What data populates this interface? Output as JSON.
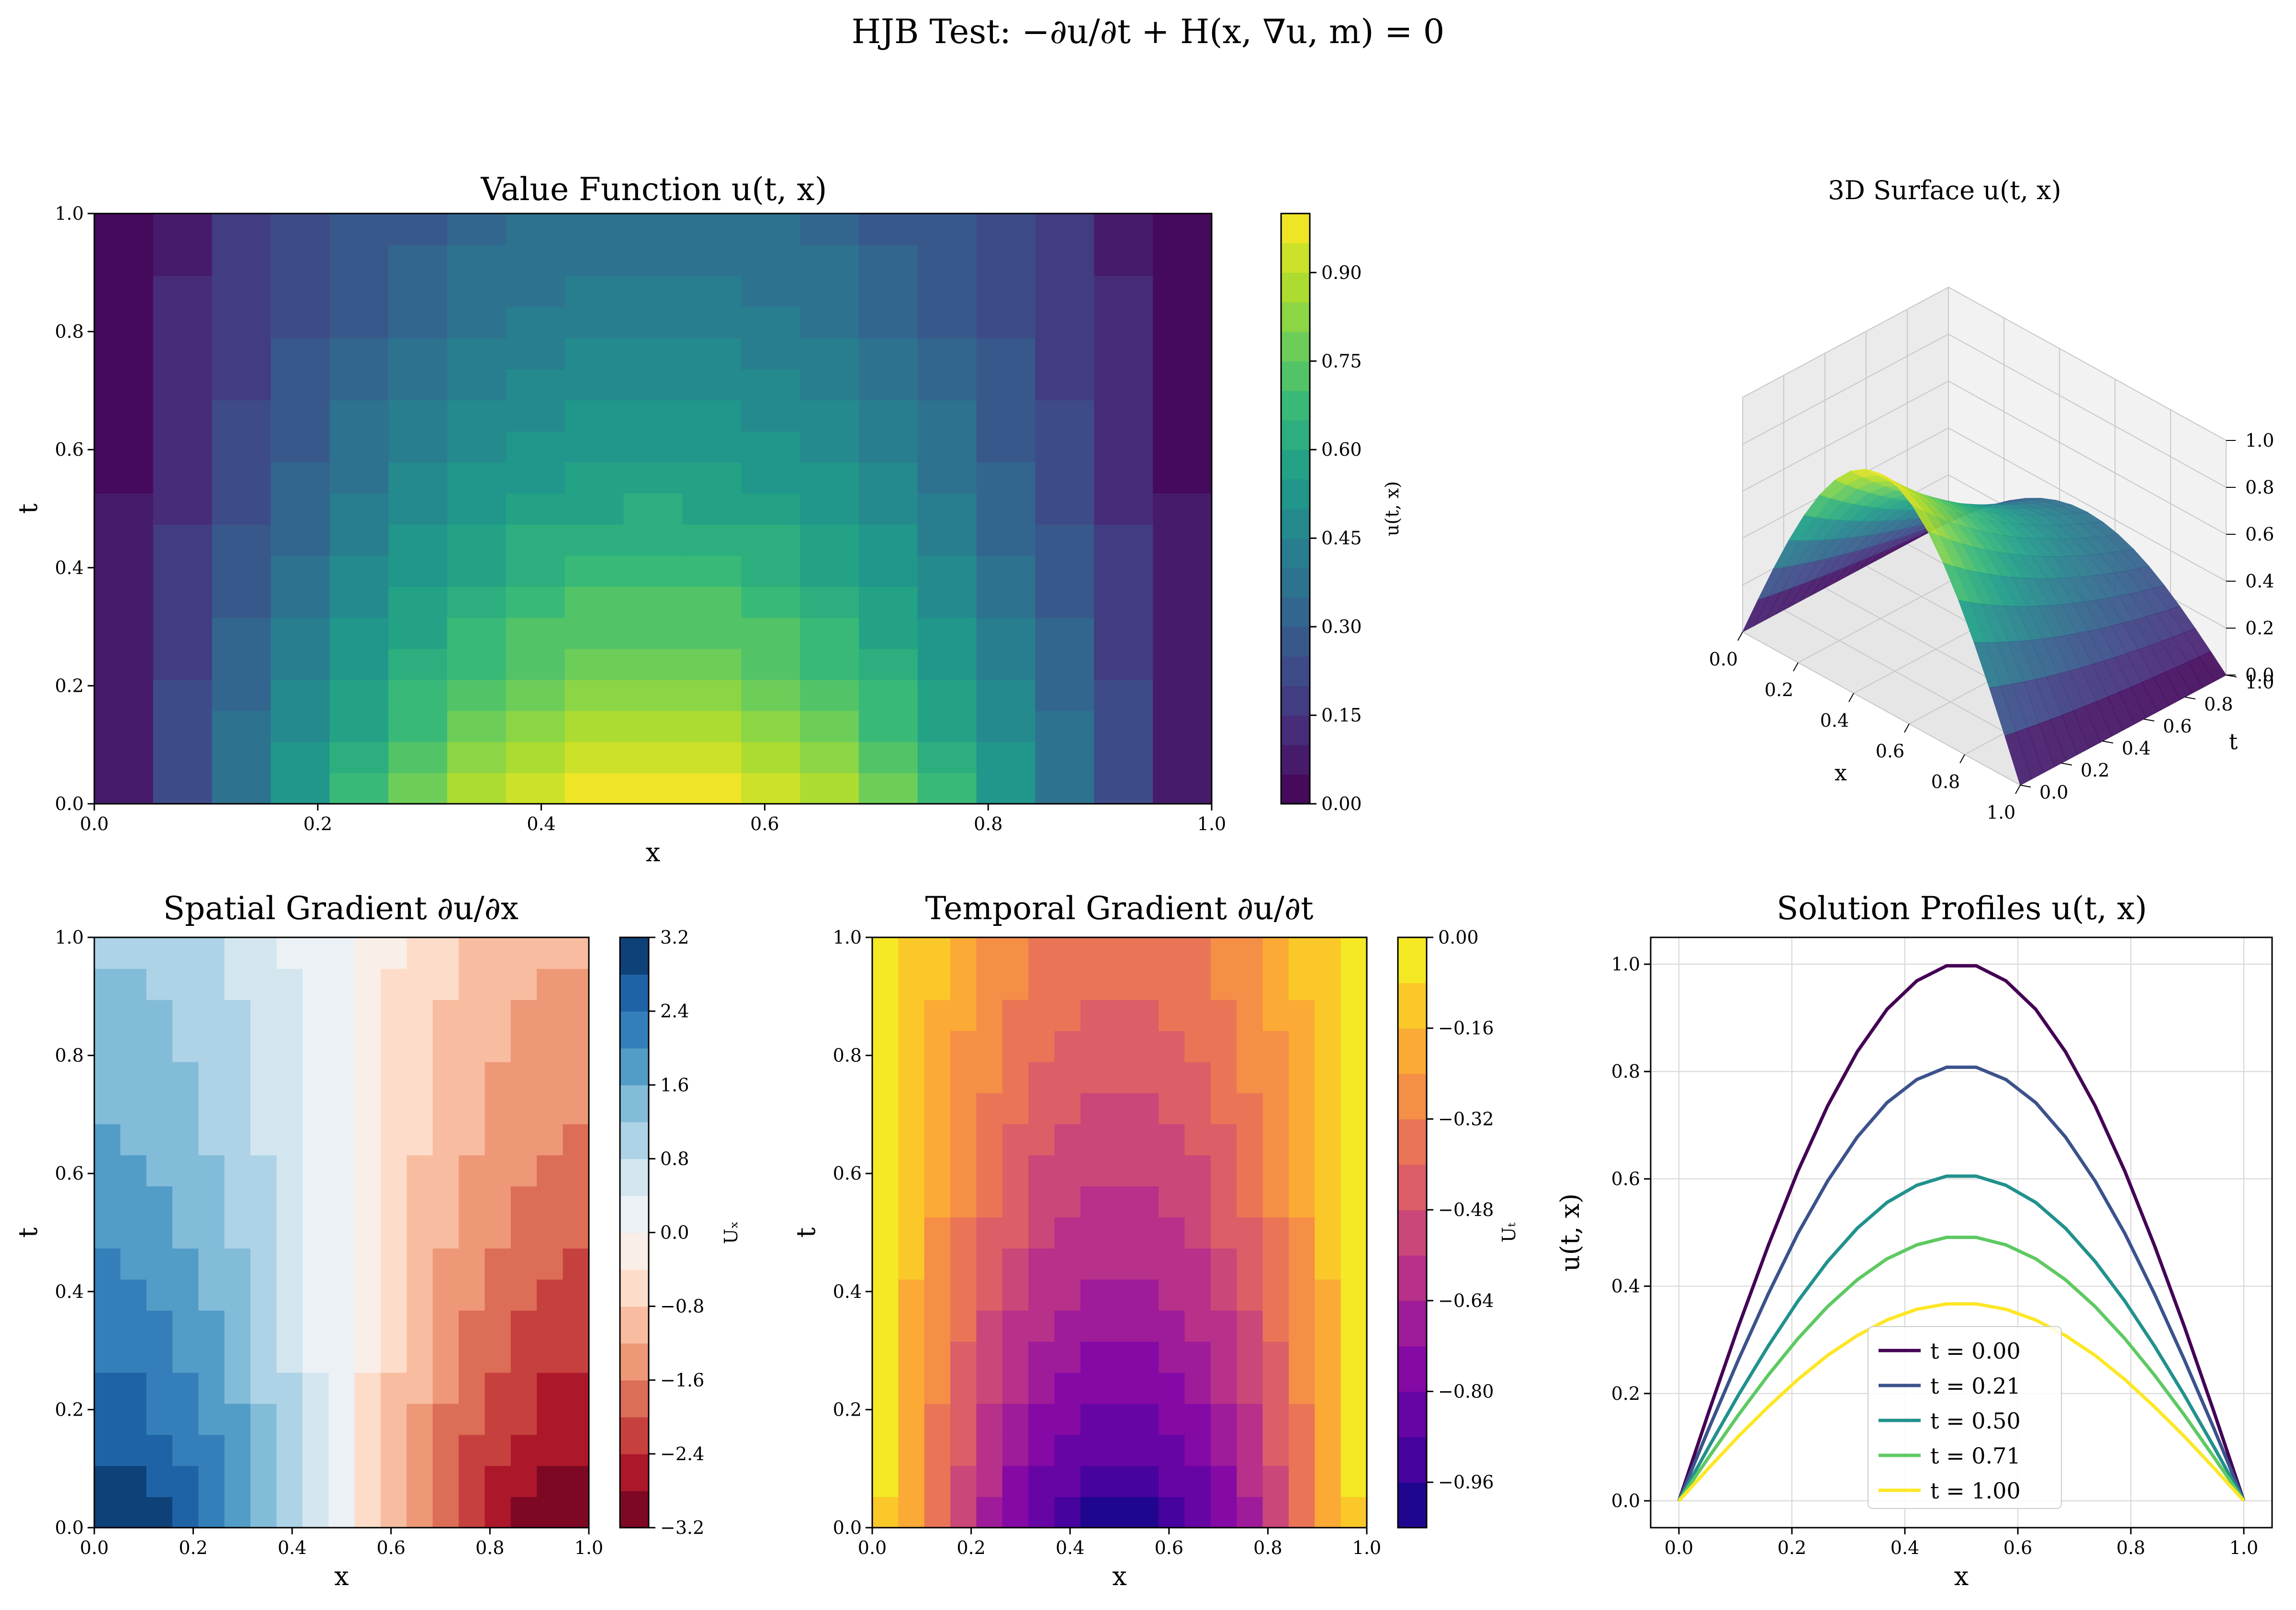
{
  "figure": {
    "suptitle": "HJB Test: −∂u/∂t + H(x, ∇u, m) = 0"
  },
  "chart_data": [
    {
      "id": "value",
      "type": "heatmap",
      "title": "Value Function u(t, x)",
      "xlabel": "x",
      "ylabel": "t",
      "xlim": [
        0,
        1
      ],
      "ylim": [
        0,
        1
      ],
      "xticks": [
        "0.0",
        "0.2",
        "0.4",
        "0.6",
        "0.8",
        "1.0"
      ],
      "yticks": [
        "0.0",
        "0.2",
        "0.4",
        "0.6",
        "0.8",
        "1.0"
      ],
      "function": "u(t,x) = exp(-t) * sin(pi x)",
      "colormap": "viridis",
      "levels": 20,
      "colorbar": {
        "label": "u(t, x)",
        "range": [
          0,
          1
        ],
        "ticks": [
          "0.00",
          "0.15",
          "0.30",
          "0.45",
          "0.60",
          "0.75",
          "0.90"
        ]
      }
    },
    {
      "id": "surface",
      "type": "surface",
      "title": "3D Surface u(t, x)",
      "xlabel": "x",
      "ylabel": "t",
      "zlabel": "u(t, x)",
      "xticks": [
        "0.0",
        "0.2",
        "0.4",
        "0.6",
        "0.8",
        "1.0"
      ],
      "yticks": [
        "0.0",
        "0.2",
        "0.4",
        "0.6",
        "0.8",
        "1.0"
      ],
      "zticks": [
        "0.0",
        "0.2",
        "0.4",
        "0.6",
        "0.8",
        "1.0"
      ],
      "colormap": "viridis"
    },
    {
      "id": "ux",
      "type": "heatmap",
      "title": "Spatial Gradient ∂u/∂x",
      "xlabel": "x",
      "ylabel": "t",
      "xlim": [
        0,
        1
      ],
      "ylim": [
        0,
        1
      ],
      "xticks": [
        "0.0",
        "0.2",
        "0.4",
        "0.6",
        "0.8",
        "1.0"
      ],
      "yticks": [
        "0.0",
        "0.2",
        "0.4",
        "0.6",
        "0.8",
        "1.0"
      ],
      "function": "u_x = pi exp(-t) cos(pi x)",
      "colormap": "RdBu",
      "levels": 16,
      "colorbar": {
        "label": "Uₓ",
        "range": [
          -3.2,
          3.2
        ],
        "ticks": [
          "3.2",
          "2.4",
          "1.6",
          "0.8",
          "0.0",
          "−0.8",
          "−1.6",
          "−2.4",
          "−3.2"
        ]
      }
    },
    {
      "id": "ut",
      "type": "heatmap",
      "title": "Temporal Gradient ∂u/∂t",
      "xlabel": "x",
      "ylabel": "t",
      "xlim": [
        0,
        1
      ],
      "ylim": [
        0,
        1
      ],
      "xticks": [
        "0.0",
        "0.2",
        "0.4",
        "0.6",
        "0.8",
        "1.0"
      ],
      "yticks": [
        "0.0",
        "0.2",
        "0.4",
        "0.6",
        "0.8",
        "1.0"
      ],
      "function": "u_t = -exp(-t) sin(pi x)",
      "colormap": "plasma",
      "levels": 13,
      "colorbar": {
        "label": "Uₜ",
        "range": [
          -1.04,
          0
        ],
        "ticks": [
          "0.00",
          "−0.16",
          "−0.32",
          "−0.48",
          "−0.64",
          "−0.80",
          "−0.96"
        ]
      }
    },
    {
      "id": "profiles",
      "type": "line",
      "title": "Solution Profiles u(t, x)",
      "xlabel": "x",
      "ylabel": "u(t, x)",
      "xlim": [
        -0.05,
        1.05
      ],
      "ylim": [
        -0.05,
        1.05
      ],
      "xticks": [
        "0.0",
        "0.2",
        "0.4",
        "0.6",
        "0.8",
        "1.0"
      ],
      "yticks": [
        "0.0",
        "0.2",
        "0.4",
        "0.6",
        "0.8",
        "1.0"
      ],
      "grid": true,
      "legend": "lower-center",
      "x": [
        0,
        0.0526,
        0.1053,
        0.1579,
        0.2105,
        0.2632,
        0.3158,
        0.3684,
        0.4211,
        0.4737,
        0.5263,
        0.5789,
        0.6316,
        0.6842,
        0.7368,
        0.7895,
        0.8421,
        0.8947,
        0.9474,
        1.0
      ],
      "series": [
        {
          "name": "t = 0.00",
          "t": 0.0,
          "color": "#440154",
          "values": [
            0,
            0.165,
            0.325,
            0.475,
            0.614,
            0.736,
            0.837,
            0.916,
            0.969,
            0.997,
            0.997,
            0.969,
            0.916,
            0.837,
            0.736,
            0.614,
            0.475,
            0.325,
            0.165,
            0
          ]
        },
        {
          "name": "t = 0.21",
          "t": 0.21,
          "color": "#3b528b",
          "values": [
            0,
            0.134,
            0.263,
            0.385,
            0.498,
            0.596,
            0.678,
            0.742,
            0.785,
            0.808,
            0.808,
            0.785,
            0.742,
            0.678,
            0.596,
            0.498,
            0.385,
            0.263,
            0.134,
            0
          ]
        },
        {
          "name": "t = 0.50",
          "t": 0.5,
          "color": "#21918c",
          "values": [
            0,
            0.1,
            0.197,
            0.288,
            0.372,
            0.446,
            0.508,
            0.556,
            0.588,
            0.605,
            0.605,
            0.588,
            0.556,
            0.508,
            0.446,
            0.372,
            0.288,
            0.197,
            0.1,
            0
          ]
        },
        {
          "name": "t = 0.71",
          "t": 0.71,
          "color": "#5ec962",
          "values": [
            0,
            0.081,
            0.16,
            0.234,
            0.302,
            0.362,
            0.412,
            0.451,
            0.477,
            0.491,
            0.491,
            0.477,
            0.451,
            0.412,
            0.362,
            0.302,
            0.234,
            0.16,
            0.081,
            0
          ]
        },
        {
          "name": "t = 1.00",
          "t": 1.0,
          "color": "#fde725",
          "values": [
            0,
            0.061,
            0.12,
            0.175,
            0.226,
            0.271,
            0.308,
            0.337,
            0.357,
            0.367,
            0.367,
            0.357,
            0.337,
            0.308,
            0.271,
            0.226,
            0.175,
            0.12,
            0.061,
            0
          ]
        }
      ]
    }
  ]
}
